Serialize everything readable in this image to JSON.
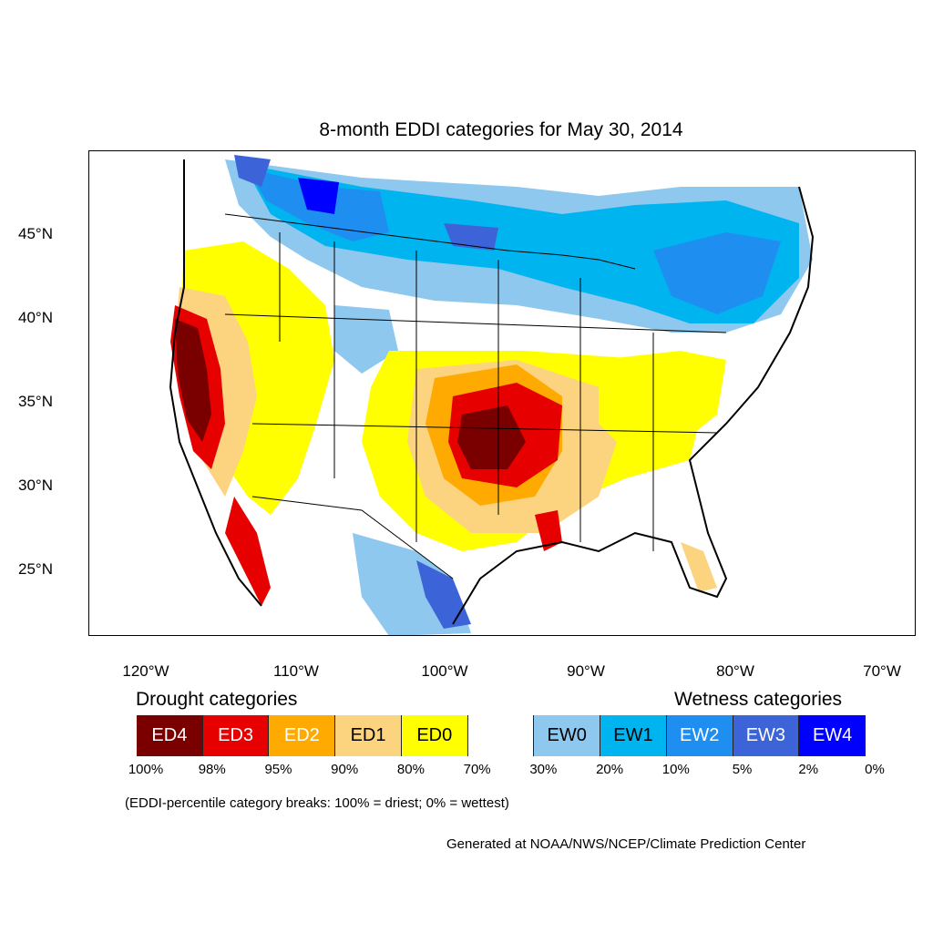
{
  "map": {
    "title": "8-month EDDI categories for May 30, 2014",
    "lat_labels": [
      "45°N",
      "40°N",
      "35°N",
      "30°N",
      "25°N"
    ],
    "lon_labels": [
      "120°W",
      "110°W",
      "100°W",
      "90°W",
      "80°W",
      "70°W"
    ]
  },
  "legend": {
    "drought_title": "Drought categories",
    "wetness_title": "Wetness categories",
    "categories": [
      {
        "label": "ED4",
        "color": "#7a0000",
        "text_color": "#ffffff"
      },
      {
        "label": "ED3",
        "color": "#e60000",
        "text_color": "#ffffff"
      },
      {
        "label": "ED2",
        "color": "#ffaa00",
        "text_color": "#ffffff"
      },
      {
        "label": "ED1",
        "color": "#fcd37f",
        "text_color": "#000000"
      },
      {
        "label": "ED0",
        "color": "#ffff00",
        "text_color": "#000000"
      },
      {
        "label": "",
        "color": "#ffffff",
        "text_color": "#000000"
      },
      {
        "label": "EW0",
        "color": "#8ec8ee",
        "text_color": "#000000"
      },
      {
        "label": "EW1",
        "color": "#00b4f0",
        "text_color": "#000000"
      },
      {
        "label": "EW2",
        "color": "#1e8ff0",
        "text_color": "#ffffff"
      },
      {
        "label": "EW3",
        "color": "#3c64d8",
        "text_color": "#ffffff"
      },
      {
        "label": "EW4",
        "color": "#0000ff",
        "text_color": "#ffffff"
      }
    ],
    "percentiles": [
      "100%",
      "98%",
      "95%",
      "90%",
      "80%",
      "70%",
      "30%",
      "20%",
      "10%",
      "5%",
      "2%",
      "0%"
    ],
    "note": "(EDDI-percentile category breaks: 100% = driest; 0% = wettest)"
  },
  "credit": "Generated at NOAA/NWS/NCEP/Climate Prediction Center"
}
